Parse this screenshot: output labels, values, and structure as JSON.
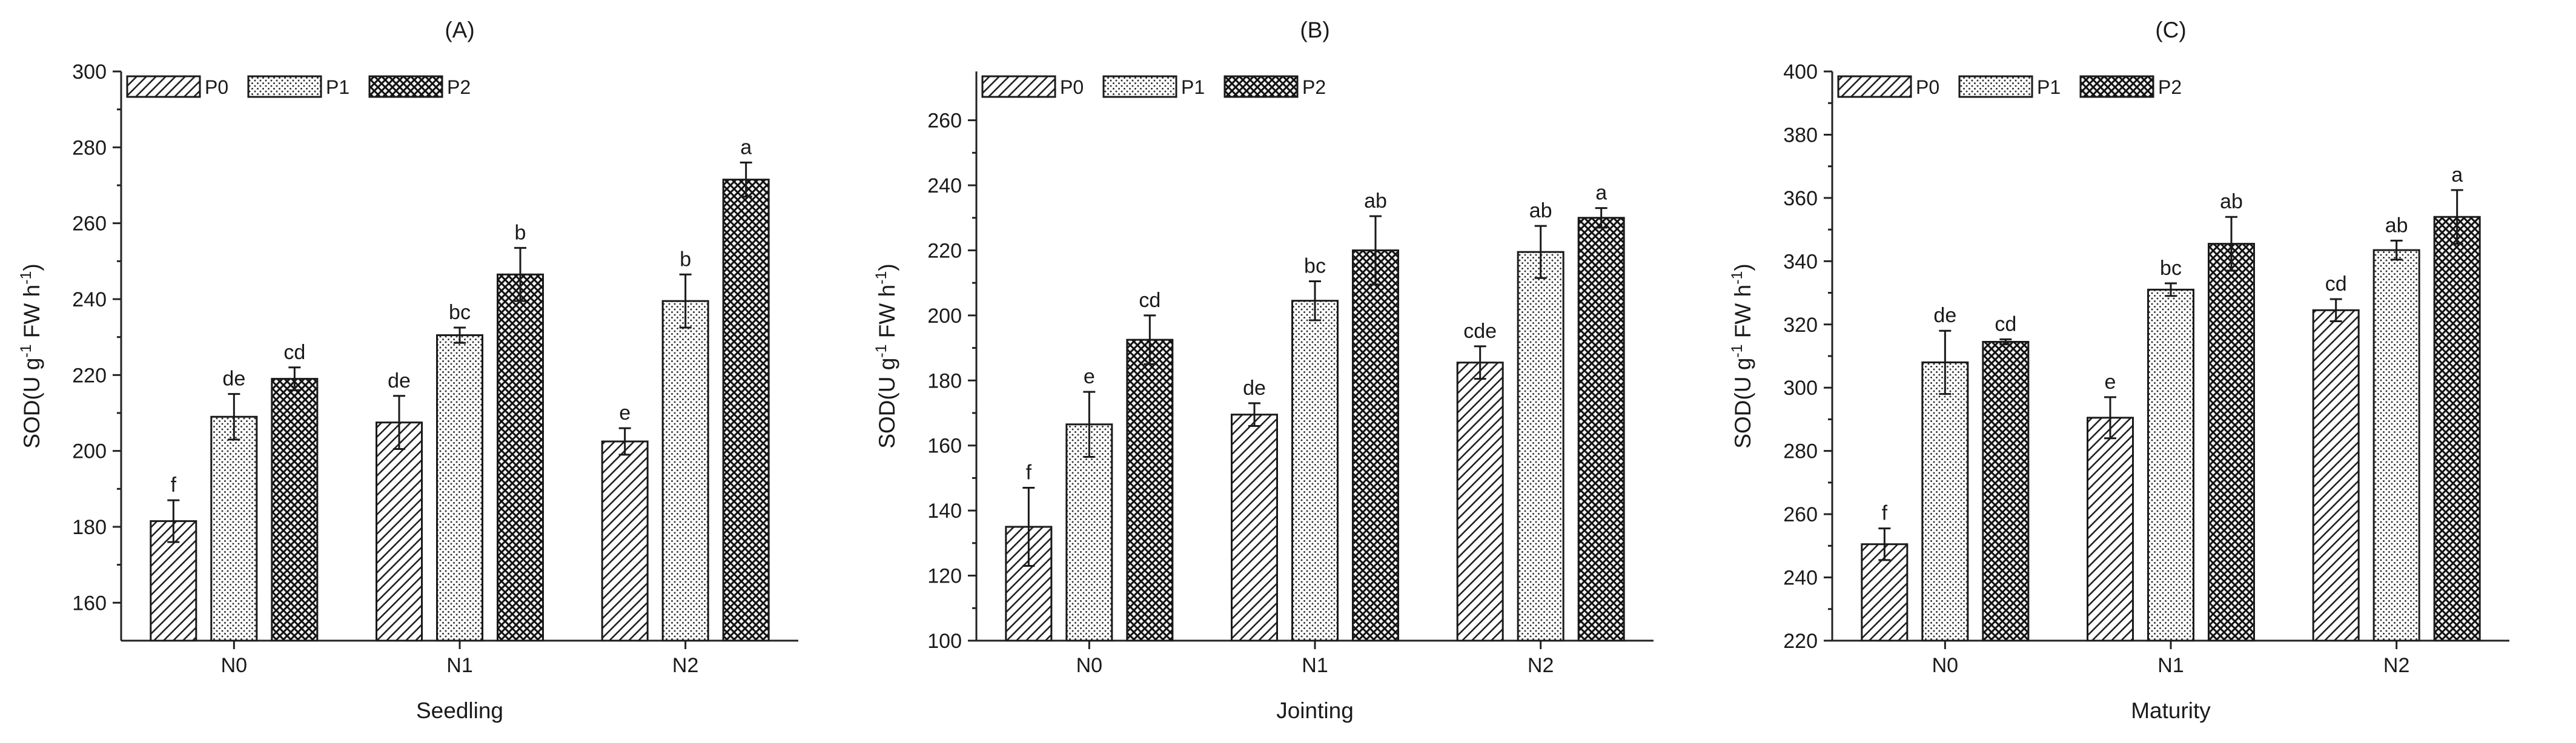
{
  "figure": {
    "legend": [
      "P0",
      "P1",
      "P2"
    ],
    "categories": [
      "N0",
      "N1",
      "N2"
    ]
  },
  "chart_data": [
    {
      "type": "bar",
      "title": "(A)",
      "xlabel": "Seedling",
      "ylabel": "SOD(U g⁻¹ FW h⁻¹)",
      "ylim": [
        150,
        300
      ],
      "yticks": [
        160,
        180,
        200,
        220,
        240,
        260,
        280,
        300
      ],
      "categories": [
        "N0",
        "N1",
        "N2"
      ],
      "series": [
        {
          "name": "P0",
          "values": [
            181.5,
            207.5,
            202.5
          ],
          "errors": [
            5.5,
            7,
            3.5
          ],
          "letters": [
            "f",
            "de",
            "e"
          ]
        },
        {
          "name": "P1",
          "values": [
            209,
            230.5,
            239.5
          ],
          "errors": [
            6,
            2,
            7
          ],
          "letters": [
            "de",
            "bc",
            "b"
          ]
        },
        {
          "name": "P2",
          "values": [
            219,
            246.5,
            271.5
          ],
          "errors": [
            3,
            7,
            4.5
          ],
          "letters": [
            "cd",
            "b",
            "a"
          ]
        }
      ]
    },
    {
      "type": "bar",
      "title": "(B)",
      "xlabel": "Jointing",
      "ylabel": "SOD(U g⁻¹ FW h⁻¹)",
      "ylim": [
        100,
        275
      ],
      "yticks": [
        100,
        120,
        140,
        160,
        180,
        200,
        220,
        240,
        260
      ],
      "categories": [
        "N0",
        "N1",
        "N2"
      ],
      "series": [
        {
          "name": "P0",
          "values": [
            135,
            169.5,
            185.5
          ],
          "errors": [
            12,
            3.5,
            5
          ],
          "letters": [
            "f",
            "de",
            "cde"
          ]
        },
        {
          "name": "P1",
          "values": [
            166.5,
            204.5,
            219.5
          ],
          "errors": [
            10,
            6,
            8
          ],
          "letters": [
            "e",
            "bc",
            "ab"
          ]
        },
        {
          "name": "P2",
          "values": [
            192.5,
            220,
            230
          ],
          "errors": [
            7.5,
            10.5,
            3
          ],
          "letters": [
            "cd",
            "ab",
            "a"
          ]
        }
      ]
    },
    {
      "type": "bar",
      "title": "(C)",
      "xlabel": "Maturity",
      "ylabel": "SOD(U g⁻¹ FW h⁻¹)",
      "ylim": [
        220,
        400
      ],
      "yticks": [
        220,
        240,
        260,
        280,
        300,
        320,
        340,
        360,
        380,
        400
      ],
      "categories": [
        "N0",
        "N1",
        "N2"
      ],
      "series": [
        {
          "name": "P0",
          "values": [
            250.5,
            290.5,
            324.5
          ],
          "errors": [
            5,
            6.5,
            3.5
          ],
          "letters": [
            "f",
            "e",
            "cd"
          ]
        },
        {
          "name": "P1",
          "values": [
            308,
            331,
            343.5
          ],
          "errors": [
            10,
            2,
            3
          ],
          "letters": [
            "de",
            "bc",
            "ab"
          ]
        },
        {
          "name": "P2",
          "values": [
            314.5,
            345.5,
            354
          ],
          "errors": [
            0.8,
            8.5,
            8.5
          ],
          "letters": [
            "cd",
            "ab",
            "a"
          ]
        }
      ]
    }
  ]
}
